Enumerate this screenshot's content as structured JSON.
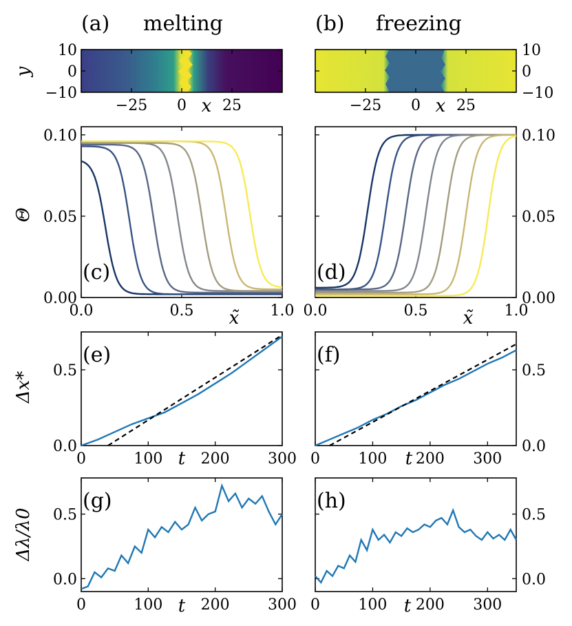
{
  "figure": {
    "panel_a_label": "(a)",
    "panel_a_title": "melting",
    "panel_b_label": "(b)",
    "panel_b_title": "freezing",
    "panel_c_label": "(c)",
    "panel_d_label": "(d)",
    "panel_e_label": "(e)",
    "panel_f_label": "(f)",
    "panel_g_label": "(g)",
    "panel_h_label": "(h)"
  },
  "colors": {
    "viridis_dark": "#440154",
    "viridis_mid": "#31688e",
    "viridis_teal": "#21918c",
    "viridis_yellow": "#fde725",
    "data_line": "#1f77b4",
    "fit_line": "#000000",
    "profile_palette": [
      "#0b2a5b",
      "#2b4a7e",
      "#505e7e",
      "#7a7f86",
      "#9d977a",
      "#c6b36a",
      "#f8e94c"
    ]
  },
  "chart_data": [
    {
      "id": "a",
      "type": "heatmap",
      "title": "melting",
      "xlabel": "x",
      "ylabel": "y",
      "xlim": [
        -50,
        50
      ],
      "ylim": [
        -10,
        10
      ],
      "xticks": [
        -25,
        0,
        25
      ],
      "yticks": [
        10,
        0,
        -10
      ],
      "colormap": "viridis",
      "description_values": {
        "front_center_x": 2,
        "front_width": 5
      }
    },
    {
      "id": "b",
      "type": "heatmap",
      "title": "freezing",
      "xlabel": "x",
      "ylabel": "y",
      "xlim": [
        -50,
        50
      ],
      "ylim": [
        -10,
        10
      ],
      "xticks": [
        -25,
        0,
        25
      ],
      "yticks": [
        10,
        0,
        -10
      ],
      "colormap": "viridis",
      "description_values": {
        "band_left_x": -13,
        "band_right_x": 13
      }
    },
    {
      "id": "c",
      "type": "line",
      "xlabel": "x̃",
      "ylabel": "Θ",
      "xlim": [
        0,
        1
      ],
      "ylim": [
        0,
        0.105
      ],
      "xticks": [
        0.0,
        0.5,
        1.0
      ],
      "yticks": [
        0.0,
        0.05,
        0.1
      ],
      "series": [
        {
          "center": 0.12,
          "high": 0.085,
          "low": 0.002
        },
        {
          "center": 0.24,
          "high": 0.093,
          "low": 0.002
        },
        {
          "center": 0.36,
          "high": 0.094,
          "low": 0.003
        },
        {
          "center": 0.48,
          "high": 0.095,
          "low": 0.004
        },
        {
          "center": 0.6,
          "high": 0.095,
          "low": 0.004
        },
        {
          "center": 0.72,
          "high": 0.096,
          "low": 0.005
        },
        {
          "center": 0.84,
          "high": 0.096,
          "low": 0.006
        }
      ]
    },
    {
      "id": "d",
      "type": "line",
      "xlabel": "x̃",
      "ylabel": "Θ",
      "xlim": [
        0,
        1
      ],
      "ylim": [
        0,
        0.105
      ],
      "xticks": [
        0.0,
        0.5,
        1.0
      ],
      "yticks": [
        0.0,
        0.05,
        0.1
      ],
      "series": [
        {
          "center": 0.26,
          "high": 0.1,
          "low": 0.006
        },
        {
          "center": 0.35,
          "high": 0.1,
          "low": 0.005
        },
        {
          "center": 0.45,
          "high": 0.1,
          "low": 0.005
        },
        {
          "center": 0.55,
          "high": 0.1,
          "low": 0.004
        },
        {
          "center": 0.65,
          "high": 0.1,
          "low": 0.003
        },
        {
          "center": 0.75,
          "high": 0.1,
          "low": 0.002
        },
        {
          "center": 0.86,
          "high": 0.1,
          "low": 0.001
        }
      ]
    },
    {
      "id": "e",
      "type": "line",
      "xlabel": "t",
      "ylabel": "Δx*",
      "xlim": [
        0,
        300
      ],
      "ylim": [
        0,
        0.75
      ],
      "xticks": [
        0,
        100,
        200,
        300
      ],
      "yticks": [
        0.0,
        0.5
      ],
      "x": [
        0,
        25,
        50,
        75,
        100,
        125,
        150,
        175,
        200,
        225,
        250,
        275,
        300
      ],
      "series": [
        {
          "values": [
            0.0,
            0.04,
            0.09,
            0.14,
            0.18,
            0.22,
            0.28,
            0.34,
            0.41,
            0.48,
            0.56,
            0.64,
            0.72
          ]
        }
      ],
      "fit": {
        "x": [
          40,
          300
        ],
        "y": [
          0.0,
          0.73
        ]
      }
    },
    {
      "id": "f",
      "type": "line",
      "xlabel": "t",
      "ylabel": "Δx*",
      "xlim": [
        0,
        350
      ],
      "ylim": [
        0,
        0.75
      ],
      "xticks": [
        0,
        100,
        200,
        300
      ],
      "yticks": [
        0.0,
        0.5
      ],
      "x": [
        0,
        25,
        50,
        75,
        100,
        125,
        150,
        175,
        200,
        225,
        250,
        275,
        300,
        325,
        350
      ],
      "series": [
        {
          "values": [
            0.0,
            0.04,
            0.08,
            0.12,
            0.17,
            0.21,
            0.26,
            0.3,
            0.35,
            0.4,
            0.44,
            0.49,
            0.54,
            0.58,
            0.63
          ]
        }
      ],
      "fit": {
        "x": [
          25,
          350
        ],
        "y": [
          0.0,
          0.67
        ]
      }
    },
    {
      "id": "g",
      "type": "line",
      "xlabel": "t",
      "ylabel": "Δλ/λ0",
      "xlim": [
        0,
        300
      ],
      "ylim": [
        -0.1,
        0.78
      ],
      "xticks": [
        0,
        100,
        200,
        300
      ],
      "yticks": [
        0.0,
        0.5
      ],
      "x": [
        0,
        10,
        20,
        30,
        40,
        50,
        60,
        70,
        80,
        90,
        100,
        110,
        120,
        130,
        140,
        150,
        160,
        170,
        180,
        190,
        200,
        210,
        220,
        230,
        240,
        250,
        260,
        270,
        280,
        290,
        300
      ],
      "series": [
        {
          "values": [
            -0.08,
            -0.06,
            0.05,
            0.01,
            0.08,
            0.06,
            0.18,
            0.12,
            0.25,
            0.2,
            0.38,
            0.32,
            0.4,
            0.36,
            0.44,
            0.38,
            0.42,
            0.55,
            0.45,
            0.5,
            0.52,
            0.72,
            0.6,
            0.66,
            0.55,
            0.62,
            0.58,
            0.64,
            0.52,
            0.42,
            0.5
          ]
        }
      ]
    },
    {
      "id": "h",
      "type": "line",
      "xlabel": "t",
      "ylabel": "Δλ/λ0",
      "xlim": [
        0,
        350
      ],
      "ylim": [
        -0.1,
        0.78
      ],
      "xticks": [
        0,
        100,
        200,
        300
      ],
      "yticks": [
        0.0,
        0.5
      ],
      "x": [
        0,
        10,
        20,
        30,
        40,
        50,
        60,
        70,
        80,
        90,
        100,
        110,
        120,
        130,
        140,
        150,
        160,
        170,
        180,
        190,
        200,
        210,
        220,
        230,
        240,
        250,
        260,
        270,
        280,
        290,
        300,
        310,
        320,
        330,
        340,
        350
      ],
      "series": [
        {
          "values": [
            0.02,
            -0.03,
            0.06,
            0.02,
            0.1,
            0.08,
            0.18,
            0.13,
            0.3,
            0.22,
            0.38,
            0.3,
            0.34,
            0.28,
            0.36,
            0.33,
            0.39,
            0.36,
            0.38,
            0.42,
            0.4,
            0.45,
            0.47,
            0.42,
            0.53,
            0.4,
            0.36,
            0.38,
            0.33,
            0.3,
            0.36,
            0.31,
            0.34,
            0.3,
            0.38,
            0.3
          ]
        }
      ]
    }
  ]
}
